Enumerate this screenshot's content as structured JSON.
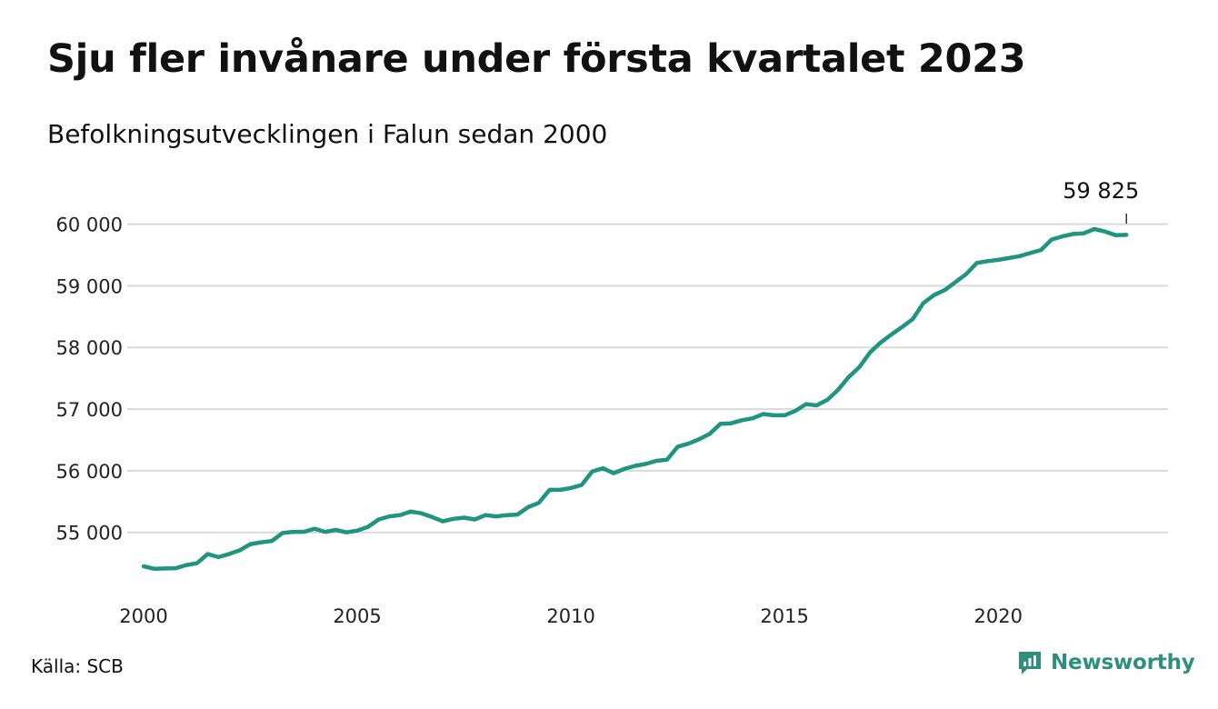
{
  "title": "Sju fler invånare under första kvartalet 2023",
  "subtitle": "Befolkningsutvecklingen i Falun sedan 2000",
  "source": "Källa: SCB",
  "brand": {
    "name": "Newsworthy",
    "icon": "newsworthy-logo-icon"
  },
  "colors": {
    "line": "#1f9480",
    "grid": "#d9d9d9",
    "brand": "#2f8f7f"
  },
  "chart_data": {
    "type": "line",
    "title": "Sju fler invånare under första kvartalet 2023",
    "subtitle": "Befolkningsutvecklingen i Falun sedan 2000",
    "xlim": [
      2000,
      2023.25
    ],
    "ylim": [
      54200,
      60200
    ],
    "x_ticks": [
      {
        "value": 2000,
        "label": "2000"
      },
      {
        "value": 2005,
        "label": "2005"
      },
      {
        "value": 2010,
        "label": "2010"
      },
      {
        "value": 2015,
        "label": "2015"
      },
      {
        "value": 2020,
        "label": "2020"
      }
    ],
    "y_ticks": [
      {
        "value": 55000,
        "label": "55 000"
      },
      {
        "value": 56000,
        "label": "56 000"
      },
      {
        "value": 57000,
        "label": "57 000"
      },
      {
        "value": 58000,
        "label": "58 000"
      },
      {
        "value": 59000,
        "label": "59 000"
      },
      {
        "value": 60000,
        "label": "60 000"
      }
    ],
    "grid": true,
    "annotation": {
      "x": 2023.0,
      "y": 59825,
      "label": "59 825"
    },
    "series": [
      {
        "x": [
          2000.0,
          2000.25,
          2000.5,
          2000.75,
          2001.0,
          2001.25,
          2001.5,
          2001.75,
          2002.0,
          2002.25,
          2002.5,
          2002.75,
          2003.0,
          2003.25,
          2003.5,
          2003.75,
          2004.0,
          2004.25,
          2004.5,
          2004.75,
          2005.0,
          2005.25,
          2005.5,
          2005.75,
          2006.0,
          2006.25,
          2006.5,
          2006.75,
          2007.0,
          2007.25,
          2007.5,
          2007.75,
          2008.0,
          2008.25,
          2008.5,
          2008.75,
          2009.0,
          2009.25,
          2009.5,
          2009.75,
          2010.0,
          2010.25,
          2010.5,
          2010.75,
          2011.0,
          2011.25,
          2011.5,
          2011.75,
          2012.0,
          2012.25,
          2012.5,
          2012.75,
          2013.0,
          2013.25,
          2013.5,
          2013.75,
          2014.0,
          2014.25,
          2014.5,
          2014.75,
          2015.0,
          2015.25,
          2015.5,
          2015.75,
          2016.0,
          2016.25,
          2016.5,
          2016.75,
          2017.0,
          2017.25,
          2017.5,
          2017.75,
          2018.0,
          2018.25,
          2018.5,
          2018.75,
          2019.0,
          2019.25,
          2019.5,
          2019.75,
          2020.0,
          2020.25,
          2020.5,
          2020.75,
          2021.0,
          2021.25,
          2021.5,
          2021.75,
          2022.0,
          2022.25,
          2022.5,
          2022.75,
          2023.0
        ],
        "y": [
          54450,
          54410,
          54415,
          54420,
          54470,
          54500,
          54650,
          54600,
          54650,
          54710,
          54810,
          54840,
          54860,
          54990,
          55010,
          55010,
          55060,
          55010,
          55040,
          55000,
          55030,
          55090,
          55210,
          55260,
          55280,
          55340,
          55310,
          55250,
          55180,
          55220,
          55240,
          55210,
          55280,
          55260,
          55280,
          55290,
          55410,
          55480,
          55690,
          55690,
          55720,
          55770,
          55990,
          56040,
          55960,
          56030,
          56080,
          56110,
          56160,
          56180,
          56390,
          56440,
          56510,
          56600,
          56760,
          56770,
          56820,
          56850,
          56920,
          56900,
          56900,
          56970,
          57080,
          57060,
          57150,
          57310,
          57520,
          57680,
          57920,
          58080,
          58210,
          58330,
          58460,
          58720,
          58850,
          58930,
          59060,
          59190,
          59370,
          59400,
          59420,
          59450,
          59480,
          59530,
          59580,
          59750,
          59800,
          59840,
          59850,
          59920,
          59880,
          59820,
          59825
        ]
      }
    ]
  }
}
